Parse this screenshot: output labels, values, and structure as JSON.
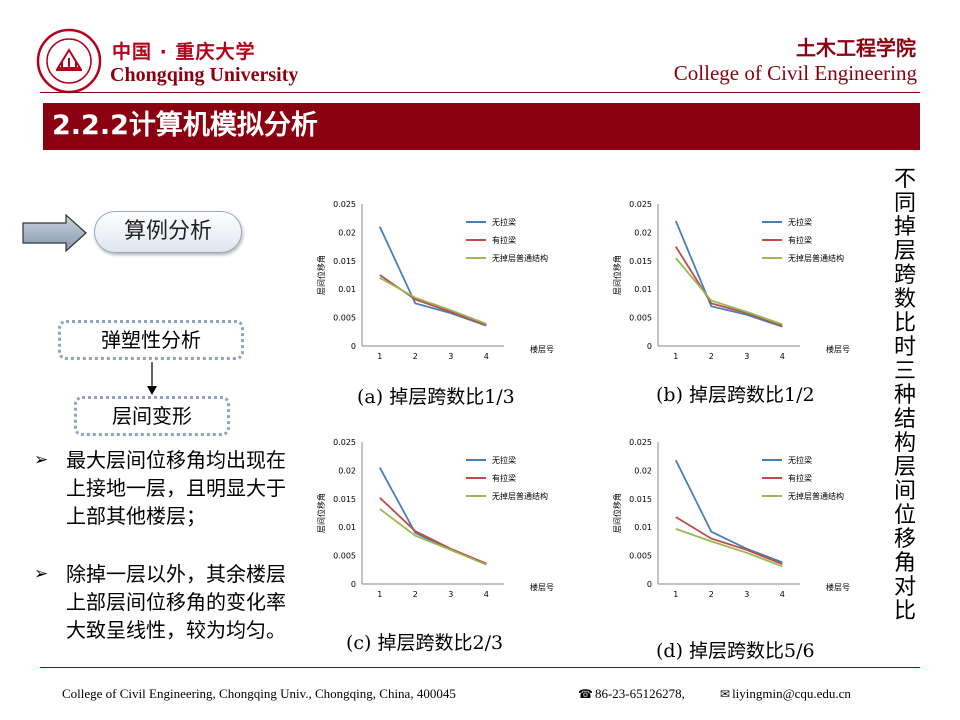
{
  "header": {
    "university_cn": "中国 · 重庆大学",
    "university_en": "Chongqing University",
    "college_cn": "土木工程学院",
    "college_en": "College of Civil Engineering"
  },
  "section": {
    "title": "2.2.2计算机模拟分析"
  },
  "left": {
    "tag": "算例分析",
    "box_plastic": "弹塑性分析",
    "box_drift": "层间变形",
    "bullets": [
      "最大层间位移角均出现在上接地一层，且明显大于上部其他楼层；",
      "除掉一层以外，其余楼层上部层间位移角的变化率大致呈线性，较为均匀。"
    ],
    "bullet_mark": "➢"
  },
  "side_text": [
    "不",
    "同",
    "掉",
    "层",
    "跨",
    "数",
    "比",
    "时",
    "三",
    "种",
    "结",
    "构",
    "层",
    "间",
    "位",
    "移",
    "角",
    "对",
    "比"
  ],
  "colors": {
    "series1": "#4a7ebb",
    "series2": "#be4b48",
    "series3": "#98b954",
    "brand": "#8b0010"
  },
  "chart_data": [
    {
      "type": "line",
      "caption": "(a) 掉层跨数比1/3",
      "x": [
        1,
        2,
        3,
        4
      ],
      "xlabel": "楼层号",
      "ylabel": "层间位移角",
      "ylim": [
        0,
        0.025
      ],
      "yticks": [
        "0",
        "0.005",
        "0.01",
        "0.015",
        "0.02",
        "0.025"
      ],
      "legend": "top-right",
      "series": [
        {
          "name": "无拉梁",
          "values": [
            0.021,
            0.0075,
            0.0058,
            0.0036
          ]
        },
        {
          "name": "有拉梁",
          "values": [
            0.0125,
            0.0082,
            0.006,
            0.0037
          ]
        },
        {
          "name": "无掉层普通结构",
          "values": [
            0.012,
            0.0085,
            0.0063,
            0.0039
          ]
        }
      ]
    },
    {
      "type": "line",
      "caption": "(b) 掉层跨数比1/2",
      "x": [
        1,
        2,
        3,
        4
      ],
      "xlabel": "楼层号",
      "ylabel": "层间位移角",
      "ylim": [
        0,
        0.025
      ],
      "yticks": [
        "0",
        "0.005",
        "0.01",
        "0.015",
        "0.02",
        "0.025"
      ],
      "legend": "top-right",
      "series": [
        {
          "name": "无拉梁",
          "values": [
            0.022,
            0.007,
            0.0055,
            0.0034
          ]
        },
        {
          "name": "有拉梁",
          "values": [
            0.0175,
            0.0075,
            0.0058,
            0.0036
          ]
        },
        {
          "name": "无掉层普通结构",
          "values": [
            0.0155,
            0.008,
            0.006,
            0.0038
          ]
        }
      ]
    },
    {
      "type": "line",
      "caption": "(c) 掉层跨数比2/3",
      "x": [
        1,
        2,
        3,
        4
      ],
      "xlabel": "楼层号",
      "ylabel": "层间位移角",
      "ylim": [
        0,
        0.025
      ],
      "yticks": [
        "0",
        "0.005",
        "0.01",
        "0.015",
        "0.02",
        "0.025"
      ],
      "legend": "top-right",
      "series": [
        {
          "name": "无拉梁",
          "values": [
            0.0205,
            0.009,
            0.006,
            0.0035
          ]
        },
        {
          "name": "有拉梁",
          "values": [
            0.0152,
            0.0093,
            0.0062,
            0.0036
          ]
        },
        {
          "name": "无掉层普通结构",
          "values": [
            0.0132,
            0.0085,
            0.006,
            0.0034
          ]
        }
      ]
    },
    {
      "type": "line",
      "caption": "(d) 掉层跨数比5/6",
      "x": [
        1,
        2,
        3,
        4
      ],
      "xlabel": "楼层号",
      "ylabel": "层间位移角",
      "ylim": [
        0,
        0.025
      ],
      "yticks": [
        "0",
        "0.005",
        "0.01",
        "0.015",
        "0.02",
        "0.025"
      ],
      "legend": "top-right",
      "series": [
        {
          "name": "无拉梁",
          "values": [
            0.0218,
            0.0092,
            0.0062,
            0.0038
          ]
        },
        {
          "name": "有拉梁",
          "values": [
            0.0118,
            0.008,
            0.006,
            0.0035
          ]
        },
        {
          "name": "无掉层普通结构",
          "values": [
            0.0097,
            0.0075,
            0.0055,
            0.0031
          ]
        }
      ]
    }
  ],
  "footer": {
    "address": "College of Civil Engineering, Chongqing Univ., Chongqing, China, 400045",
    "phone_icon": "telephone-icon",
    "phone": "86-23-65126278,",
    "mail_icon": "envelope-icon",
    "email": "liyingmin@cqu.edu.cn"
  }
}
